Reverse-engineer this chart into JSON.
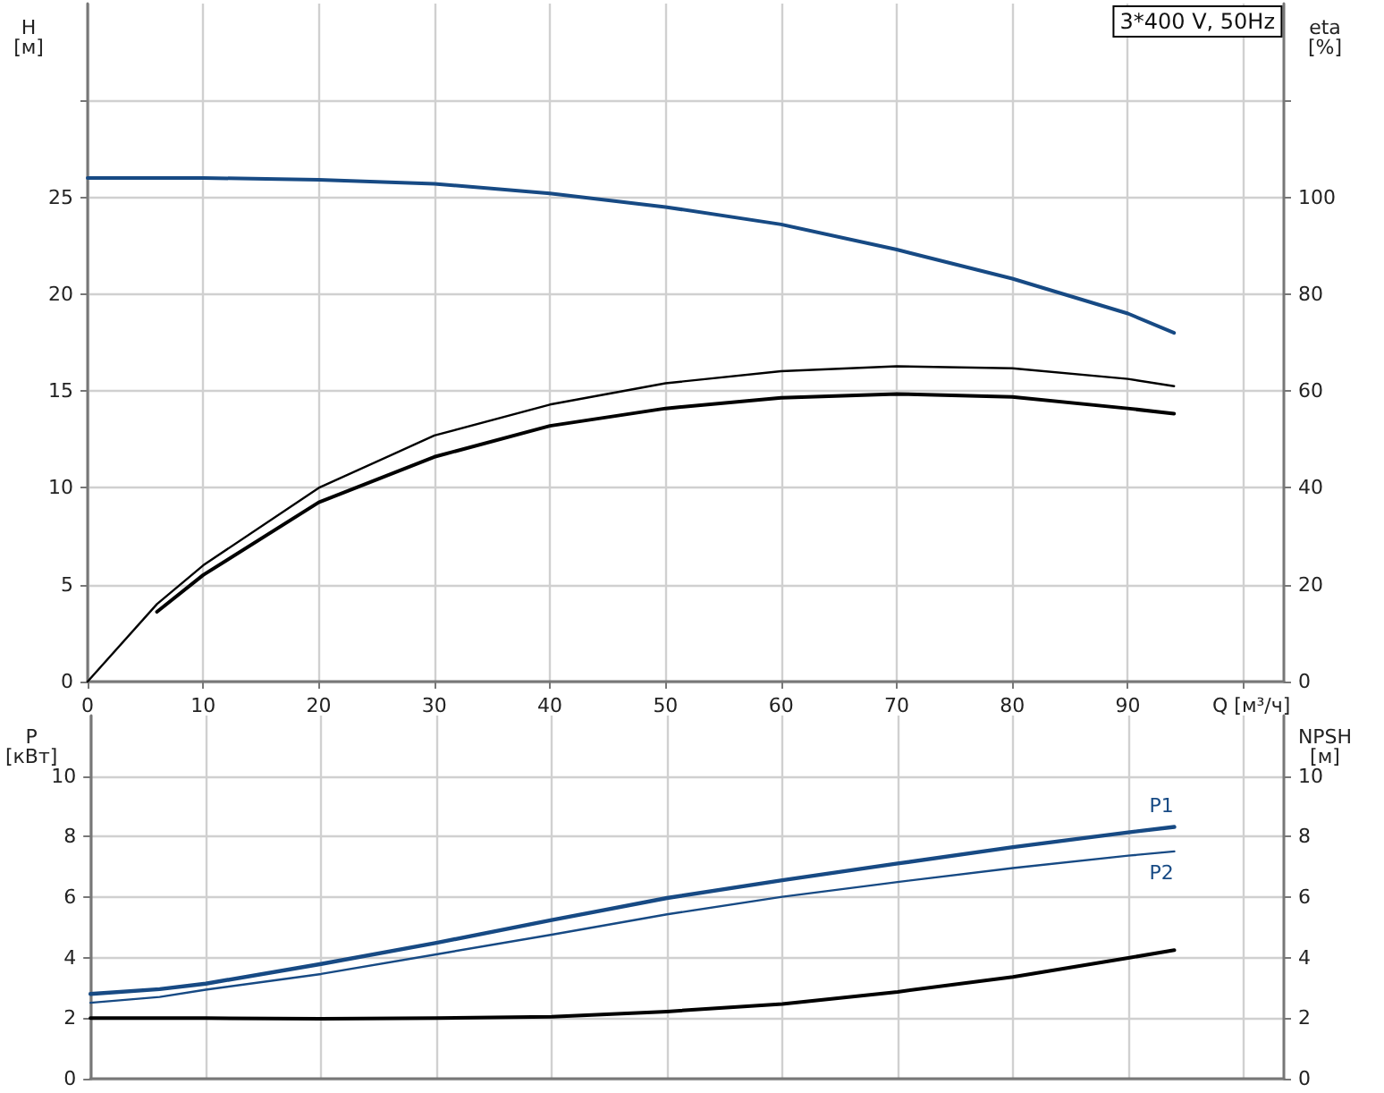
{
  "chart_data": [
    {
      "type": "line",
      "title": "3*400 V, 50Hz",
      "xlabel": "Q [м³/ч]",
      "ylabel": "H [м]",
      "y2label": "eta [%]",
      "xlim": [
        0,
        103.5
      ],
      "xticks": [
        0,
        10,
        20,
        30,
        40,
        50,
        60,
        70,
        80,
        90,
        {
          "value": 100,
          "label": null
        }
      ],
      "ylim": [
        0,
        35
      ],
      "yticks": [
        0,
        5,
        10,
        15,
        20,
        25,
        {
          "value": 30,
          "label": null
        }
      ],
      "y2lim": [
        0,
        140
      ],
      "y2ticks": [
        0,
        20,
        40,
        60,
        80,
        100,
        {
          "value": 120,
          "label": null
        }
      ],
      "grid": true,
      "legend": false,
      "marker": "none",
      "line_style": "solid",
      "series": [
        {
          "color": "#174a84",
          "x": [
            0,
            6,
            10,
            20,
            30,
            40,
            50,
            60,
            70,
            80,
            90,
            94
          ],
          "values": [
            26,
            26,
            26,
            25.9,
            25.7,
            25.2,
            24.5,
            23.6,
            22.3,
            20.8,
            19,
            18
          ]
        },
        {
          "color": "#000000",
          "axis": "y2",
          "x": [
            6,
            10,
            20,
            30,
            40,
            50,
            60,
            70,
            80,
            90,
            94
          ],
          "values": [
            14.4,
            22,
            37,
            46.4,
            52.8,
            56.4,
            58.6,
            59.4,
            58.8,
            56.4,
            55.3
          ]
        },
        {
          "color": "#000000",
          "axis": "y2",
          "x": [
            0,
            6,
            10,
            20,
            30,
            40,
            50,
            60,
            70,
            80,
            90,
            94
          ],
          "values": [
            0,
            16,
            24,
            40,
            50.8,
            57.2,
            61.6,
            64.1,
            65.1,
            64.7,
            62.5,
            61
          ]
        }
      ]
    },
    {
      "type": "line",
      "ylabel": "P [кВт]",
      "y2label": "NPSH [м]",
      "tick_labels": "y",
      "xlim": [
        0,
        103.5
      ],
      "xticks": [
        0,
        10,
        20,
        30,
        40,
        50,
        60,
        70,
        80,
        90,
        100
      ],
      "ylim": [
        0,
        12
      ],
      "yticks": [
        0,
        2,
        4,
        6,
        8,
        10
      ],
      "y2lim": [
        0,
        12
      ],
      "y2ticks": [
        0,
        2,
        4,
        6,
        8,
        10
      ],
      "grid": true,
      "legend": false,
      "marker": "none",
      "line_style": "solid",
      "series": [
        {
          "name": "P1",
          "color": "#174a84",
          "x": [
            0,
            6,
            10,
            20,
            30,
            40,
            50,
            60,
            70,
            80,
            90,
            94
          ],
          "values": [
            2.8,
            2.96,
            3.14,
            3.79,
            4.49,
            5.24,
            5.97,
            6.56,
            7.11,
            7.65,
            8.14,
            8.32
          ]
        },
        {
          "name": "P2",
          "color": "#174a84",
          "x": [
            0,
            6,
            10,
            20,
            30,
            40,
            50,
            60,
            70,
            80,
            90,
            94
          ],
          "values": [
            2.51,
            2.7,
            2.94,
            3.46,
            4.11,
            4.76,
            5.43,
            6.01,
            6.5,
            6.96,
            7.37,
            7.51
          ]
        },
        {
          "color": "#000000",
          "axis": "y2",
          "x": [
            0,
            6,
            10,
            20,
            30,
            40,
            50,
            60,
            70,
            80,
            90,
            94
          ],
          "values": [
            2,
            2,
            2,
            1.98,
            2,
            2.05,
            2.22,
            2.47,
            2.87,
            3.36,
            3.99,
            4.25
          ]
        }
      ]
    }
  ]
}
